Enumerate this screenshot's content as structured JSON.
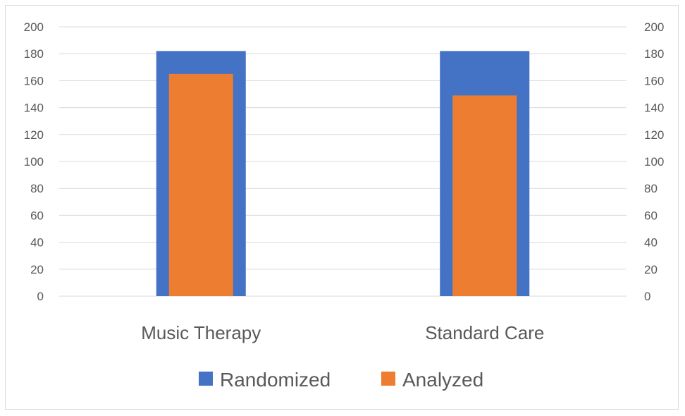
{
  "chart_data": {
    "type": "bar",
    "categories": [
      "Music Therapy",
      "Standard Care"
    ],
    "series": [
      {
        "name": "Randomized",
        "values": [
          182,
          182
        ],
        "color": "#4472C4",
        "axis": "left"
      },
      {
        "name": "Analyzed",
        "values": [
          165,
          149
        ],
        "color": "#ED7D31",
        "axis": "right"
      }
    ],
    "y_ticks": [
      "0",
      "20",
      "40",
      "60",
      "80",
      "100",
      "120",
      "140",
      "160",
      "180",
      "200"
    ],
    "y2_ticks": [
      "0",
      "20",
      "40",
      "60",
      "80",
      "100",
      "120",
      "140",
      "160",
      "180",
      "200"
    ],
    "ylim": [
      0,
      200
    ],
    "y2lim": [
      0,
      200
    ],
    "grid": true,
    "legend_position": "bottom",
    "title": "",
    "xlabel": "",
    "ylabel": ""
  }
}
